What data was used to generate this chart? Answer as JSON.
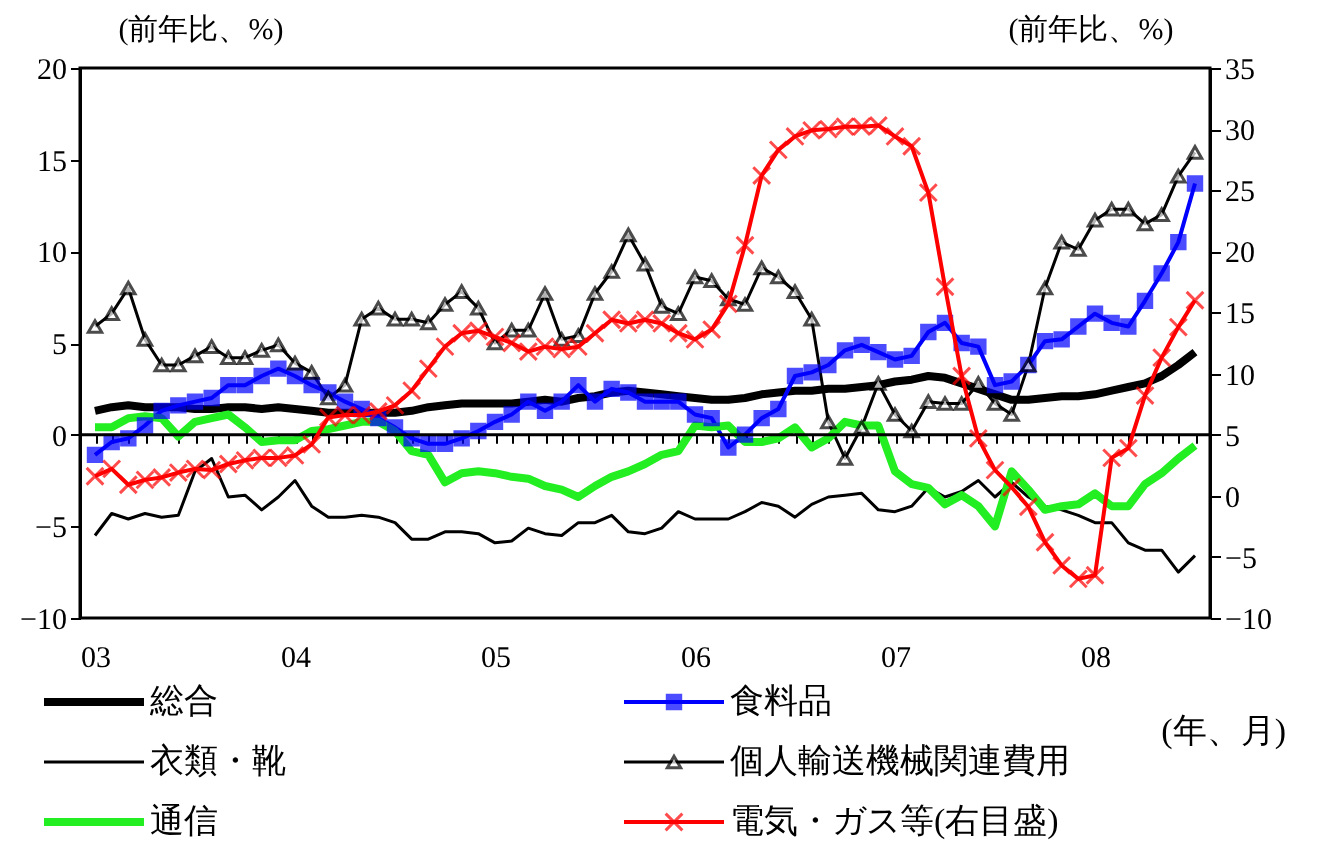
{
  "chart_data": {
    "type": "line",
    "xlabel": "(年、月)",
    "ylabel": "(前年比、%)",
    "y2label": "(前年比、%)",
    "categories": [
      "03",
      null,
      null,
      null,
      null,
      null,
      null,
      null,
      null,
      null,
      null,
      null,
      "04",
      null,
      null,
      null,
      null,
      null,
      null,
      null,
      null,
      null,
      null,
      null,
      "05",
      null,
      null,
      null,
      null,
      null,
      null,
      null,
      null,
      null,
      null,
      null,
      "06",
      null,
      null,
      null,
      null,
      null,
      null,
      null,
      null,
      null,
      null,
      null,
      "07",
      null,
      null,
      null,
      null,
      null,
      null,
      null,
      null,
      null,
      null,
      null,
      "08",
      null,
      null,
      null,
      null,
      null,
      null
    ],
    "ylim": [
      -10,
      20
    ],
    "yticks": [
      -10,
      -5,
      0,
      5,
      10,
      15,
      20
    ],
    "y2lim": [
      -10,
      35
    ],
    "y2ticks": [
      -10,
      -5,
      0,
      5,
      10,
      15,
      20,
      25,
      30,
      35
    ],
    "grid": false,
    "legend": "bottom",
    "ref_lines": [
      {
        "axis": "y",
        "value": 0
      }
    ],
    "series": [
      {
        "name": "総合",
        "color": "#000000",
        "marker": "none",
        "values": [
          1.3,
          1.5,
          1.6,
          1.5,
          1.5,
          1.5,
          1.4,
          1.4,
          1.5,
          1.5,
          1.4,
          1.5,
          1.4,
          1.3,
          1.2,
          1.2,
          1.2,
          1.2,
          1.2,
          1.3,
          1.5,
          1.6,
          1.7,
          1.7,
          1.7,
          1.7,
          1.8,
          1.9,
          1.8,
          2.0,
          2.1,
          2.3,
          2.4,
          2.3,
          2.2,
          2.1,
          2.0,
          1.9,
          1.9,
          2.0,
          2.2,
          2.3,
          2.4,
          2.4,
          2.5,
          2.5,
          2.6,
          2.7,
          2.9,
          3.0,
          3.2,
          3.1,
          2.8,
          2.5,
          2.2,
          1.9,
          1.9,
          2.0,
          2.1,
          2.1,
          2.2,
          2.4,
          2.6,
          2.8,
          3.2,
          3.8,
          4.5
        ]
      },
      {
        "name": "食料品",
        "color": "#0000ff",
        "marker": "square",
        "values": [
          -1.1,
          -0.4,
          -0.2,
          0.5,
          1.3,
          1.6,
          1.8,
          2.0,
          2.7,
          2.7,
          3.2,
          3.6,
          3.2,
          2.7,
          2.3,
          1.8,
          1.4,
          0.9,
          0.4,
          -0.2,
          -0.5,
          -0.5,
          -0.2,
          0.2,
          0.7,
          1.1,
          1.8,
          1.3,
          1.8,
          2.7,
          1.8,
          2.5,
          2.3,
          1.8,
          1.8,
          1.8,
          1.1,
          0.9,
          -0.7,
          0,
          0.9,
          1.4,
          3.2,
          3.4,
          3.8,
          4.6,
          4.9,
          4.5,
          4.1,
          4.3,
          5.6,
          6.1,
          5.0,
          4.8,
          2.7,
          2.9,
          3.8,
          5.1,
          5.2,
          5.9,
          6.6,
          6.1,
          5.9,
          7.3,
          8.8,
          10.5,
          13.7
        ]
      },
      {
        "name": "衣類・靴",
        "color": "#000000",
        "marker": "none",
        "values": [
          -5.5,
          -4.3,
          -4.6,
          -4.3,
          -4.5,
          -4.4,
          -2.0,
          -1.3,
          -3.4,
          -3.3,
          -4.1,
          -3.4,
          -2.5,
          -3.9,
          -4.5,
          -4.5,
          -4.4,
          -4.5,
          -4.8,
          -5.7,
          -5.7,
          -5.3,
          -5.3,
          -5.4,
          -5.9,
          -5.8,
          -5.1,
          -5.4,
          -5.5,
          -4.8,
          -4.8,
          -4.4,
          -5.3,
          -5.4,
          -5.1,
          -4.2,
          -4.6,
          -4.6,
          -4.6,
          -4.2,
          -3.7,
          -3.9,
          -4.5,
          -3.8,
          -3.4,
          -3.3,
          -3.2,
          -4.1,
          -4.2,
          -3.9,
          -2.9,
          -3.4,
          -3.1,
          -2.5,
          -3.4,
          -2.6,
          -3.4,
          -3.9,
          -4.1,
          -4.4,
          -4.8,
          -4.8,
          -5.9,
          -6.3,
          -6.3,
          -7.5,
          -6.6
        ]
      },
      {
        "name": "個人輸送機械関連費用",
        "color": "#000000",
        "marker": "triangle",
        "values": [
          5.9,
          6.6,
          8.0,
          5.2,
          3.8,
          3.8,
          4.3,
          4.8,
          4.2,
          4.2,
          4.6,
          4.9,
          3.9,
          3.4,
          2.0,
          2.7,
          6.3,
          6.9,
          6.3,
          6.3,
          6.1,
          7.1,
          7.8,
          6.9,
          5.0,
          5.7,
          5.7,
          7.7,
          5.2,
          5.4,
          7.7,
          8.9,
          10.9,
          9.3,
          7.0,
          6.6,
          8.6,
          8.4,
          7.4,
          7.1,
          9.1,
          8.6,
          7.8,
          6.3,
          0.7,
          -1.3,
          0.4,
          2.8,
          1.1,
          0.2,
          1.8,
          1.7,
          1.7,
          2.8,
          1.7,
          1.1,
          3.8,
          8.0,
          10.5,
          10.1,
          11.7,
          12.3,
          12.3,
          11.5,
          12.0,
          14.1,
          15.4
        ]
      },
      {
        "name": "通信",
        "color": "#22ee22",
        "marker": "none",
        "values": [
          0.4,
          0.4,
          0.9,
          1.0,
          0.9,
          -0.1,
          0.7,
          0.9,
          1.1,
          0.4,
          -0.4,
          -0.3,
          -0.3,
          0.2,
          0.3,
          0.5,
          0.7,
          0.7,
          0.2,
          -0.9,
          -1.1,
          -2.6,
          -2.1,
          -2.0,
          -2.1,
          -2.3,
          -2.4,
          -2.8,
          -3.0,
          -3.4,
          -2.8,
          -2.3,
          -2.0,
          -1.6,
          -1.1,
          -0.9,
          0.5,
          0.4,
          0.5,
          -0.4,
          -0.4,
          -0.2,
          0.4,
          -0.7,
          -0.2,
          0.7,
          0.5,
          0.5,
          -2.0,
          -2.7,
          -2.9,
          -3.8,
          -3.3,
          -3.9,
          -5.0,
          -2.0,
          -3.0,
          -4.1,
          -3.9,
          -3.8,
          -3.2,
          -3.9,
          -3.9,
          -2.7,
          -2.1,
          -1.3,
          -0.6
        ]
      },
      {
        "name": "電気・ガス等(右目盛)",
        "color": "#ff0000",
        "marker": "cross",
        "axis": "y2",
        "values": [
          1.6,
          2.2,
          0.9,
          1.3,
          1.5,
          1.9,
          2.2,
          2.1,
          2.6,
          2.9,
          3.1,
          3.1,
          3.3,
          4.2,
          6.4,
          6.6,
          6.6,
          6.9,
          7.4,
          8.6,
          10.4,
          12.2,
          13.3,
          13.5,
          13.0,
          12.5,
          11.8,
          12.2,
          12.0,
          12.2,
          13.3,
          14.4,
          14.1,
          14.4,
          14.1,
          13.3,
          12.8,
          13.6,
          15.7,
          20.5,
          26.2,
          28.3,
          29.4,
          29.9,
          30.0,
          30.2,
          30.2,
          30.3,
          29.4,
          28.6,
          24.8,
          17.1,
          9.8,
          4.7,
          2.1,
          0.7,
          -0.9,
          -3.8,
          -5.7,
          -6.8,
          -6.5,
          3.1,
          3.9,
          8.2,
          11.3,
          13.8,
          16.0
        ]
      }
    ]
  }
}
